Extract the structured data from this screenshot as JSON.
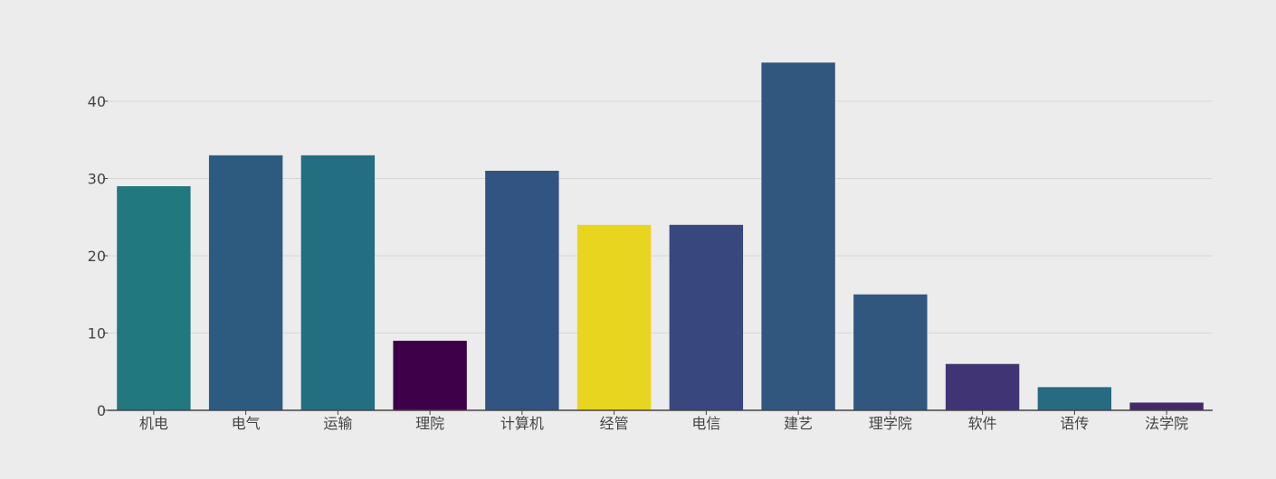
{
  "chart_data": {
    "type": "bar",
    "title": "",
    "xlabel": "",
    "ylabel": "",
    "categories": [
      "机电",
      "电气",
      "运输",
      "理院",
      "计算机",
      "经管",
      "电信",
      "建艺",
      "理学院",
      "软件",
      "语传",
      "法学院"
    ],
    "values": [
      29,
      33,
      33,
      9,
      31,
      24,
      24,
      45,
      15,
      6,
      3,
      1
    ],
    "colors": [
      "#22787f",
      "#2d5b80",
      "#236e80",
      "#3e0048",
      "#315482",
      "#e8d520",
      "#39477f",
      "#31577f",
      "#31577f",
      "#403475",
      "#286a80",
      "#452866"
    ],
    "ylim": [
      0,
      48
    ],
    "yticks": [
      0,
      10,
      20,
      30,
      40
    ],
    "grid": true,
    "legend": "none"
  }
}
